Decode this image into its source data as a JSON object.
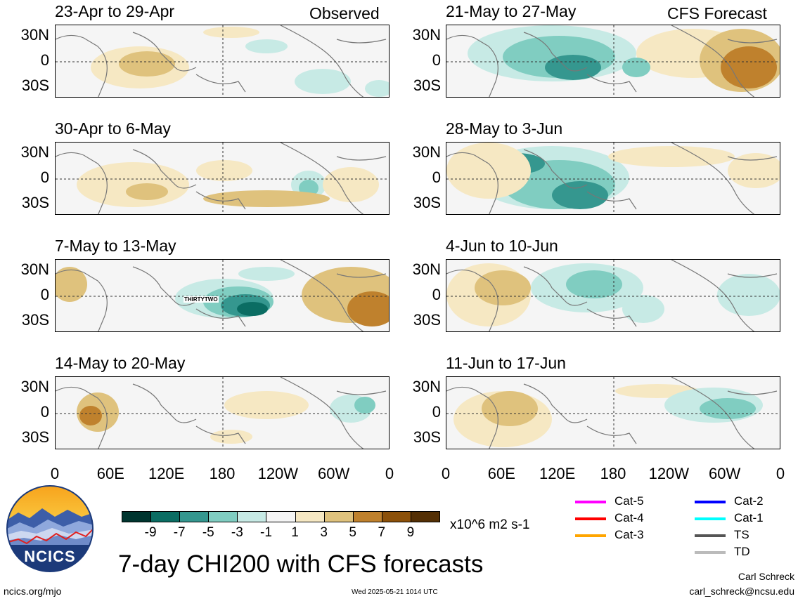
{
  "labels": {
    "observed": "Observed",
    "forecast": "CFS Forecast",
    "lat_ticks": [
      "30N",
      "0",
      "30S"
    ],
    "lon_ticks": [
      "0",
      "60E",
      "120E",
      "180",
      "120W",
      "60W",
      "0"
    ]
  },
  "panels_left": [
    {
      "title": "23-Apr to 29-Apr"
    },
    {
      "title": "30-Apr to 6-May"
    },
    {
      "title": "7-May to 13-May",
      "storm": "THIRTYTWO"
    },
    {
      "title": "14-May to 20-May"
    }
  ],
  "panels_right": [
    {
      "title": "21-May to 27-May"
    },
    {
      "title": "28-May to 3-Jun"
    },
    {
      "title": "4-Jun to 10-Jun"
    },
    {
      "title": "11-Jun to 17-Jun"
    }
  ],
  "colorbar": {
    "colors": [
      "#00352f",
      "#0b6d63",
      "#35978f",
      "#80cdc1",
      "#c7eae5",
      "#f5f5f5",
      "#f6e8c3",
      "#dfc27d",
      "#bf812d",
      "#8c510a",
      "#543005"
    ],
    "ticks": [
      "-9",
      "-7",
      "-5",
      "-3",
      "-1",
      "1",
      "3",
      "5",
      "7",
      "9"
    ],
    "units": "x10^6 m2 s-1"
  },
  "legend": {
    "left": [
      {
        "label": "Cat-5",
        "color": "#ff00ff"
      },
      {
        "label": "Cat-4",
        "color": "#ff0000"
      },
      {
        "label": "Cat-3",
        "color": "#ffa500"
      }
    ],
    "right": [
      {
        "label": "Cat-2",
        "color": "#0000ff"
      },
      {
        "label": "Cat-1",
        "color": "#00ffff"
      },
      {
        "label": "TS",
        "color": "#555555"
      },
      {
        "label": "TD",
        "color": "#bbbbbb"
      }
    ]
  },
  "logo": {
    "text": "NCICS"
  },
  "main_title": "7-day CHI200 with CFS forecasts",
  "footer": {
    "url": "ncics.org/mjo",
    "timestamp": "Wed 2025-05-21 1014 UTC",
    "author": "Carl Schreck",
    "email": "carl_schreck@ncsu.edu"
  }
}
